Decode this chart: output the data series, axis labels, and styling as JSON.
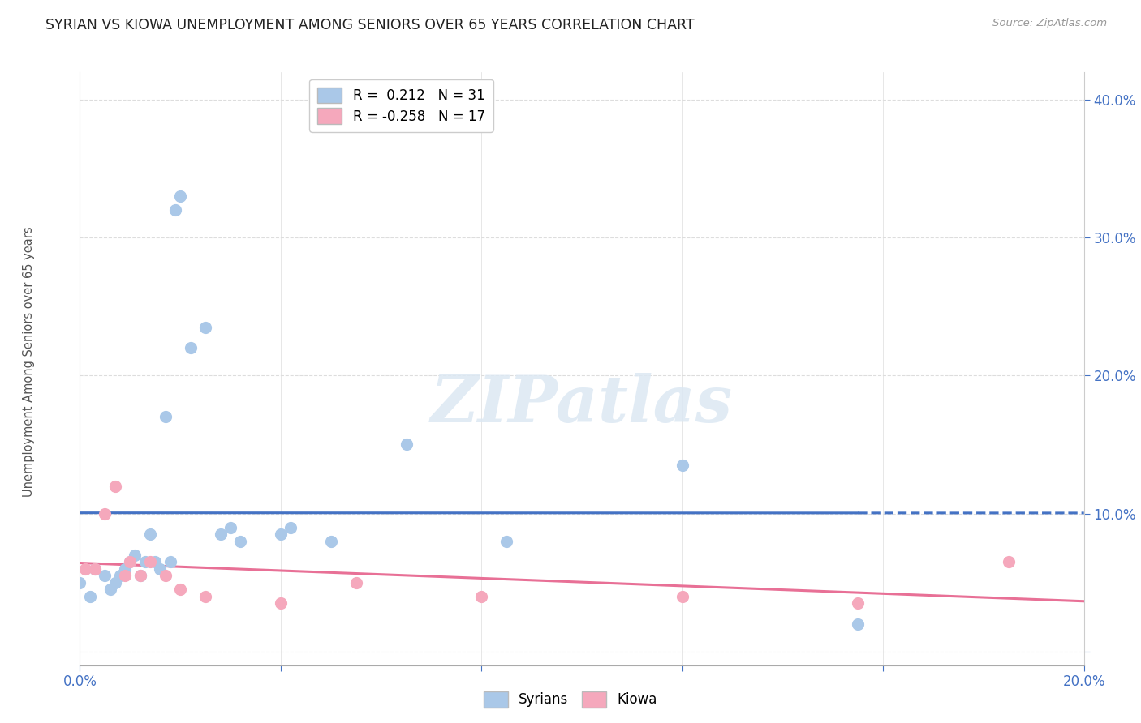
{
  "title": "SYRIAN VS KIOWA UNEMPLOYMENT AMONG SENIORS OVER 65 YEARS CORRELATION CHART",
  "source": "Source: ZipAtlas.com",
  "ylabel": "Unemployment Among Seniors over 65 years",
  "syrian_R": 0.212,
  "syrian_N": 31,
  "kiowa_R": -0.258,
  "kiowa_N": 17,
  "syrian_x": [
    0.0,
    0.002,
    0.003,
    0.005,
    0.006,
    0.007,
    0.008,
    0.009,
    0.01,
    0.011,
    0.012,
    0.013,
    0.014,
    0.015,
    0.016,
    0.017,
    0.018,
    0.019,
    0.02,
    0.022,
    0.025,
    0.028,
    0.03,
    0.032,
    0.04,
    0.042,
    0.05,
    0.065,
    0.085,
    0.12,
    0.155
  ],
  "syrian_y": [
    0.05,
    0.04,
    0.06,
    0.055,
    0.045,
    0.05,
    0.055,
    0.06,
    0.065,
    0.07,
    0.055,
    0.065,
    0.085,
    0.065,
    0.06,
    0.17,
    0.065,
    0.32,
    0.33,
    0.22,
    0.235,
    0.085,
    0.09,
    0.08,
    0.085,
    0.09,
    0.08,
    0.15,
    0.08,
    0.135,
    0.02
  ],
  "kiowa_x": [
    0.001,
    0.003,
    0.005,
    0.007,
    0.009,
    0.01,
    0.012,
    0.014,
    0.017,
    0.02,
    0.025,
    0.04,
    0.055,
    0.08,
    0.12,
    0.155,
    0.185
  ],
  "kiowa_y": [
    0.06,
    0.06,
    0.1,
    0.12,
    0.055,
    0.065,
    0.055,
    0.065,
    0.055,
    0.045,
    0.04,
    0.035,
    0.05,
    0.04,
    0.04,
    0.035,
    0.065
  ],
  "syrian_color": "#aac8e8",
  "kiowa_color": "#f5a8bc",
  "syrian_line_color": "#4472c4",
  "kiowa_line_color": "#e87096",
  "xlim": [
    0.0,
    0.2
  ],
  "ylim": [
    -0.01,
    0.42
  ],
  "watermark_text": "ZIPatlas",
  "background_color": "#ffffff"
}
